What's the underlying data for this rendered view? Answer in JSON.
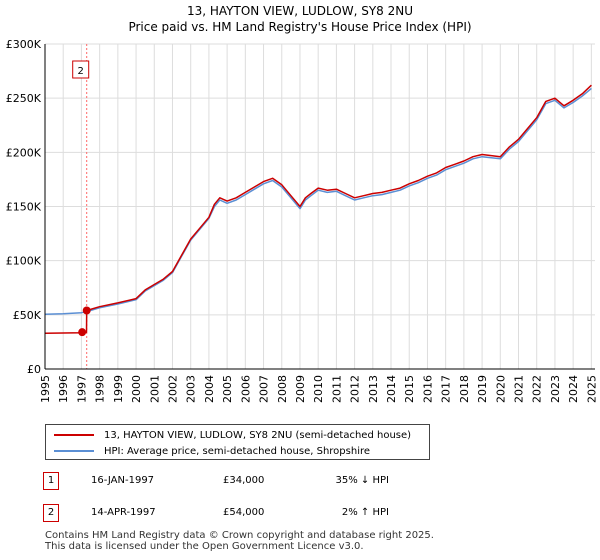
{
  "chart_data": {
    "type": "line",
    "title": "13, HAYTON VIEW, LUDLOW, SY8 2NU",
    "subtitle": "Price paid vs. HM Land Registry's House Price Index (HPI)",
    "xlabel": "",
    "ylabel": "",
    "xlim": [
      1995,
      2025.2
    ],
    "ylim": [
      0,
      300000
    ],
    "x_ticks": [
      "1995",
      "1996",
      "1997",
      "1998",
      "1999",
      "2000",
      "2001",
      "2002",
      "2003",
      "2004",
      "2005",
      "2006",
      "2007",
      "2008",
      "2009",
      "2010",
      "2011",
      "2012",
      "2013",
      "2014",
      "2015",
      "2016",
      "2017",
      "2018",
      "2019",
      "2020",
      "2021",
      "2022",
      "2023",
      "2024",
      "2025"
    ],
    "y_ticks": [
      {
        "value": 0,
        "label": "£0"
      },
      {
        "value": 50000,
        "label": "£50K"
      },
      {
        "value": 100000,
        "label": "£100K"
      },
      {
        "value": 150000,
        "label": "£150K"
      },
      {
        "value": 200000,
        "label": "£200K"
      },
      {
        "value": 250000,
        "label": "£250K"
      },
      {
        "value": 300000,
        "label": "£300K"
      }
    ],
    "grid": true,
    "series": [
      {
        "name": "13, HAYTON VIEW, LUDLOW, SY8 2NU (semi-detached house)",
        "color": "#cc0000",
        "x": [
          1995.0,
          1996.0,
          1997.04,
          1997.05,
          1997.28,
          1997.29,
          1998.0,
          1999.0,
          2000.0,
          2000.5,
          2001.0,
          2001.5,
          2002.0,
          2002.5,
          2003.0,
          2003.5,
          2004.0,
          2004.3,
          2004.6,
          2005.0,
          2005.5,
          2006.0,
          2006.5,
          2007.0,
          2007.5,
          2008.0,
          2008.5,
          2009.0,
          2009.3,
          2009.6,
          2010.0,
          2010.5,
          2011.0,
          2011.5,
          2012.0,
          2012.5,
          2013.0,
          2013.5,
          2014.0,
          2014.5,
          2015.0,
          2015.5,
          2016.0,
          2016.5,
          2017.0,
          2017.5,
          2018.0,
          2018.5,
          2019.0,
          2019.5,
          2020.0,
          2020.5,
          2021.0,
          2021.5,
          2022.0,
          2022.5,
          2023.0,
          2023.5,
          2024.0,
          2024.5,
          2025.0
        ],
        "y": [
          33000,
          33200,
          33500,
          34000,
          34000,
          54000,
          57500,
          61000,
          65000,
          73000,
          78000,
          83000,
          90000,
          105000,
          120000,
          130000,
          140000,
          152000,
          158000,
          155000,
          158000,
          163000,
          168000,
          173000,
          176000,
          170000,
          160000,
          150000,
          158000,
          162000,
          167000,
          165000,
          166000,
          162000,
          158000,
          160000,
          162000,
          163000,
          165000,
          167000,
          171000,
          174000,
          178000,
          181000,
          186000,
          189000,
          192000,
          196000,
          198000,
          197000,
          196000,
          205000,
          212000,
          222000,
          232000,
          247000,
          250000,
          243000,
          248000,
          254000,
          262000
        ]
      },
      {
        "name": "HPI: Average price, semi-detached house, Shropshire",
        "color": "#5b8fd4",
        "x": [
          1995.0,
          1996.0,
          1997.0,
          1997.29,
          1998.0,
          1999.0,
          2000.0,
          2000.5,
          2001.0,
          2001.5,
          2002.0,
          2002.5,
          2003.0,
          2003.5,
          2004.0,
          2004.3,
          2004.6,
          2005.0,
          2005.5,
          2006.0,
          2006.5,
          2007.0,
          2007.5,
          2008.0,
          2008.5,
          2009.0,
          2009.3,
          2009.6,
          2010.0,
          2010.5,
          2011.0,
          2011.5,
          2012.0,
          2012.5,
          2013.0,
          2013.5,
          2014.0,
          2014.5,
          2015.0,
          2015.5,
          2016.0,
          2016.5,
          2017.0,
          2017.5,
          2018.0,
          2018.5,
          2019.0,
          2019.5,
          2020.0,
          2020.5,
          2021.0,
          2021.5,
          2022.0,
          2022.5,
          2023.0,
          2023.5,
          2024.0,
          2024.5,
          2025.0
        ],
        "y": [
          50500,
          51000,
          52000,
          53000,
          56500,
          60000,
          64000,
          72000,
          77000,
          82000,
          89000,
          104000,
          119000,
          129000,
          139000,
          150000,
          156000,
          153000,
          156000,
          161000,
          166000,
          171000,
          174000,
          168000,
          158000,
          148000,
          156000,
          160000,
          165000,
          163000,
          164000,
          160000,
          156000,
          158000,
          160000,
          161000,
          163000,
          165000,
          169000,
          172000,
          176000,
          179000,
          184000,
          187000,
          190000,
          194000,
          196000,
          195000,
          194000,
          203000,
          210000,
          220000,
          230000,
          245000,
          248000,
          241000,
          246000,
          252000,
          259000
        ]
      }
    ],
    "sales": [
      {
        "id": "1",
        "date": "16-JAN-1997",
        "x": 1997.04,
        "price": 34000,
        "price_label": "£34,000",
        "hpi": "35% ↓ HPI"
      },
      {
        "id": "2",
        "date": "14-APR-1997",
        "x": 1997.29,
        "price": 54000,
        "price_label": "£54,000",
        "hpi": "2% ↑ HPI"
      }
    ]
  },
  "legend": {
    "price_label": "13, HAYTON VIEW, LUDLOW, SY8 2NU (semi-detached house)",
    "hpi_label": "HPI: Average price, semi-detached house, Shropshire"
  },
  "footer": {
    "line1": "Contains HM Land Registry data © Crown copyright and database right 2025.",
    "line2": "This data is licensed under the Open Government Licence v3.0."
  },
  "colors": {
    "price": "#cc0000",
    "hpi": "#5b8fd4",
    "grid": "#dddddd",
    "plot_bg": "#ffffff",
    "marker_line": "#ff6666"
  }
}
